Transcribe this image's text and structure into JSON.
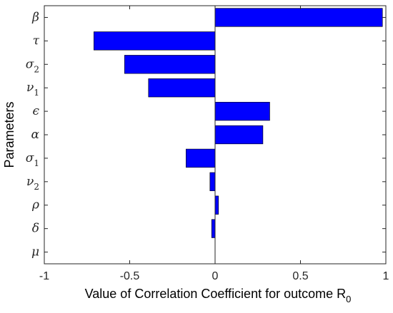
{
  "chart_data": {
    "type": "bar",
    "orientation": "horizontal",
    "categories": [
      {
        "symbol": "β",
        "sub": ""
      },
      {
        "symbol": "τ",
        "sub": ""
      },
      {
        "symbol": "σ",
        "sub": "2"
      },
      {
        "symbol": "ν",
        "sub": "1"
      },
      {
        "symbol": "ϵ",
        "sub": ""
      },
      {
        "symbol": "α",
        "sub": ""
      },
      {
        "symbol": "σ",
        "sub": "1"
      },
      {
        "symbol": "ν",
        "sub": "2"
      },
      {
        "symbol": "ρ",
        "sub": ""
      },
      {
        "symbol": "δ",
        "sub": ""
      },
      {
        "symbol": "μ",
        "sub": ""
      }
    ],
    "values": [
      0.98,
      -0.71,
      -0.53,
      -0.39,
      0.32,
      0.28,
      -0.17,
      -0.03,
      0.02,
      -0.02,
      0.0
    ],
    "xlim": [
      -1,
      1
    ],
    "xticks": [
      "-1",
      "-0.5",
      "0",
      "0.5",
      "1"
    ],
    "xtick_values": [
      -1,
      -0.5,
      0,
      0.5,
      1
    ],
    "xlabel": "Value of Correlation Coefficient for outcome R",
    "xlabel_sub": "0",
    "ylabel": "Parameters",
    "bar_color": "#0000ff",
    "grid": false,
    "legend": "none"
  }
}
